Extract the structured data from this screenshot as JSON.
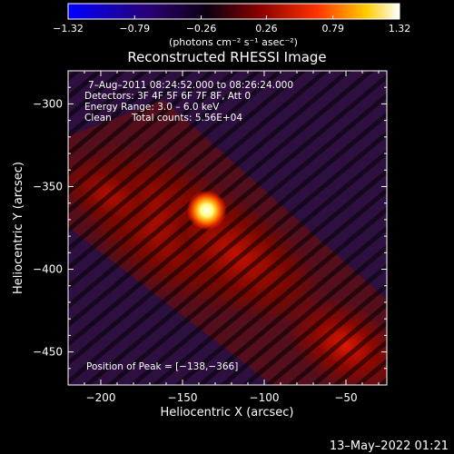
{
  "chart_data": {
    "type": "heatmap",
    "title": "Reconstructed RHESSI Image",
    "xlabel": "Heliocentric X (arcsec)",
    "ylabel": "Heliocentric Y (arcsec)",
    "xlim": [
      -220,
      -25
    ],
    "ylim": [
      -470,
      -280
    ],
    "x_ticks": [
      -200,
      -150,
      -100,
      -50
    ],
    "y_ticks": [
      -300,
      -350,
      -400,
      -450
    ],
    "x_tick_labels": [
      "−200",
      "−150",
      "−100",
      "−50"
    ],
    "y_tick_labels": [
      "−300",
      "−350",
      "−400",
      "−450"
    ],
    "colorbar": {
      "range": [
        -1.32,
        1.32
      ],
      "ticks": [
        -1.32,
        -0.79,
        -0.26,
        0.26,
        0.79,
        1.32
      ],
      "tick_labels": [
        "−1.32",
        "−0.79",
        "−0.26",
        "0.26",
        "0.79",
        "1.32"
      ],
      "unit_label": "(photons cm⁻² s⁻¹ asec⁻²)",
      "colors": [
        "#0000ff",
        "#3a0070",
        "#000000",
        "#cc0000",
        "#ff6600",
        "#ffff00",
        "#ffffff"
      ]
    },
    "peak": {
      "x": -138,
      "y": -366
    }
  },
  "annotations": {
    "time_range": "7–Aug–2011 08:24:52.000 to 08:26:24.000",
    "detectors": "Detectors: 3F 4F 5F 6F 7F 8F, Att 0",
    "energy_range": "Energy Range: 3.0 – 6.0 keV",
    "clean": "Clean",
    "total_counts": "Total counts: 5.56E+04",
    "peak_position": "Position of Peak = [−138,−366]"
  },
  "footer": {
    "timestamp": "13–May–2022 01:21"
  }
}
